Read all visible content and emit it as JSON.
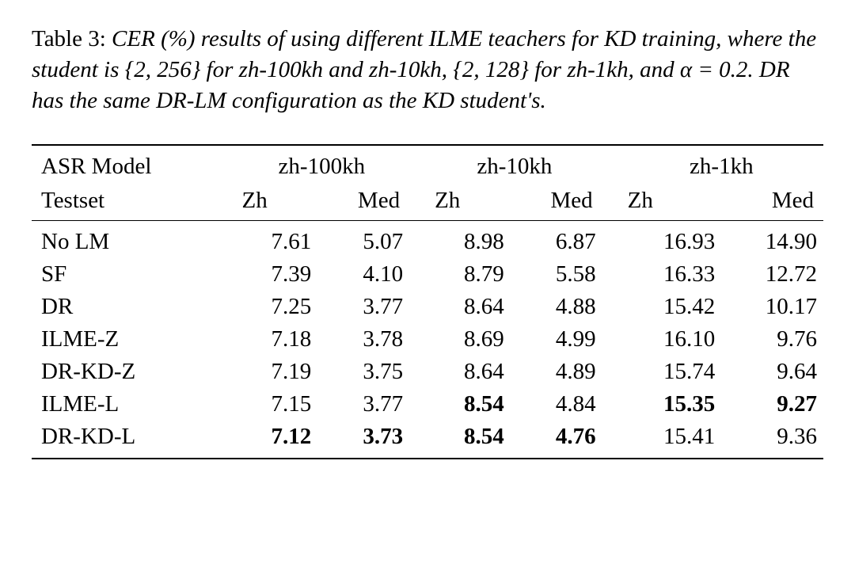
{
  "caption": {
    "label": "Table 3:",
    "text": "CER (%) results of using different ILME teachers for KD training, where the student is {2, 256} for zh-100kh and zh-10kh, {2, 128} for zh-1kh, and α = 0.2. DR has the same DR-LM configuration as the KD student's."
  },
  "headers": {
    "row1_label": "ASR Model",
    "row2_label": "Testset",
    "groups": [
      "zh-100kh",
      "zh-10kh",
      "zh-1kh"
    ],
    "sub": [
      "Zh",
      "Med"
    ]
  },
  "rows": [
    {
      "label": "No LM",
      "indent": false,
      "cells": [
        {
          "v": "7.61",
          "b": false
        },
        {
          "v": "5.07",
          "b": false
        },
        {
          "v": "8.98",
          "b": false
        },
        {
          "v": "6.87",
          "b": false
        },
        {
          "v": "16.93",
          "b": false
        },
        {
          "v": "14.90",
          "b": false
        }
      ]
    },
    {
      "label": "SF",
      "indent": false,
      "cells": [
        {
          "v": "7.39",
          "b": false
        },
        {
          "v": "4.10",
          "b": false
        },
        {
          "v": "8.79",
          "b": false
        },
        {
          "v": "5.58",
          "b": false
        },
        {
          "v": "16.33",
          "b": false
        },
        {
          "v": "12.72",
          "b": false
        }
      ]
    },
    {
      "label": "DR",
      "indent": false,
      "cells": [
        {
          "v": "7.25",
          "b": false
        },
        {
          "v": "3.77",
          "b": false
        },
        {
          "v": "8.64",
          "b": false
        },
        {
          "v": "4.88",
          "b": false
        },
        {
          "v": "15.42",
          "b": false
        },
        {
          "v": "10.17",
          "b": false
        }
      ]
    },
    {
      "label": "ILME-Z",
      "indent": false,
      "cells": [
        {
          "v": "7.18",
          "b": false
        },
        {
          "v": "3.78",
          "b": false
        },
        {
          "v": "8.69",
          "b": false
        },
        {
          "v": "4.99",
          "b": false
        },
        {
          "v": "16.10",
          "b": false
        },
        {
          "v": "9.76",
          "b": false
        }
      ]
    },
    {
      "label": "DR-KD-Z",
      "indent": true,
      "cells": [
        {
          "v": "7.19",
          "b": false
        },
        {
          "v": "3.75",
          "b": false
        },
        {
          "v": "8.64",
          "b": false
        },
        {
          "v": "4.89",
          "b": false
        },
        {
          "v": "15.74",
          "b": false
        },
        {
          "v": "9.64",
          "b": false
        }
      ]
    },
    {
      "label": "ILME-L",
      "indent": false,
      "cells": [
        {
          "v": "7.15",
          "b": false
        },
        {
          "v": "3.77",
          "b": false
        },
        {
          "v": "8.54",
          "b": true
        },
        {
          "v": "4.84",
          "b": false
        },
        {
          "v": "15.35",
          "b": true
        },
        {
          "v": "9.27",
          "b": true
        }
      ]
    },
    {
      "label": "DR-KD-L",
      "indent": true,
      "cells": [
        {
          "v": "7.12",
          "b": true
        },
        {
          "v": "3.73",
          "b": true
        },
        {
          "v": "8.54",
          "b": true
        },
        {
          "v": "4.76",
          "b": true
        },
        {
          "v": "15.41",
          "b": false
        },
        {
          "v": "9.36",
          "b": false
        }
      ]
    }
  ]
}
